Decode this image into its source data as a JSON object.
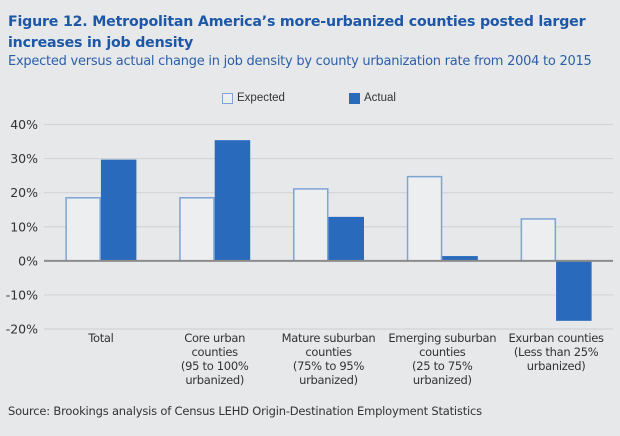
{
  "chart_data": {
    "type": "bar",
    "title": "Figure 12. Metropolitan America’s more-urbanized counties posted larger increases in job density",
    "subtitle": "Expected versus actual change in job density by county urbanization rate from 2004 to 2015",
    "categories": [
      "Total",
      "Core urban\ncounties\n(95 to 100%\nurbanized)",
      "Mature suburban\ncounties\n(75% to 95%\nurbanized)",
      "Emerging suburban\ncounties\n(25 to 75%\nurbanized)",
      "Exurban counties\n(Less  than 25%\nurbanized)"
    ],
    "series": [
      {
        "name": "Expected",
        "values": [
          18.5,
          18.5,
          21.1,
          24.7,
          12.3
        ],
        "color": "#7fa3d4",
        "fill": "#eceef0"
      },
      {
        "name": "Actual",
        "values": [
          29.7,
          35.4,
          12.9,
          1.4,
          -17.6
        ],
        "color": "#2a6abd",
        "fill": "#2a6abd"
      }
    ],
    "xlabel": "",
    "ylabel": "",
    "ylim": [
      -20,
      40
    ],
    "yticks": [
      40,
      30,
      20,
      10,
      0,
      -10,
      -20
    ],
    "ytick_labels": [
      "40%",
      "30%",
      "20%",
      "10%",
      "0%",
      "-10%",
      "-20%"
    ],
    "grid": true,
    "legend_position": "top-center",
    "source": "Source: Brookings analysis of Census LEHD Origin-Destination Employment Statistics"
  }
}
